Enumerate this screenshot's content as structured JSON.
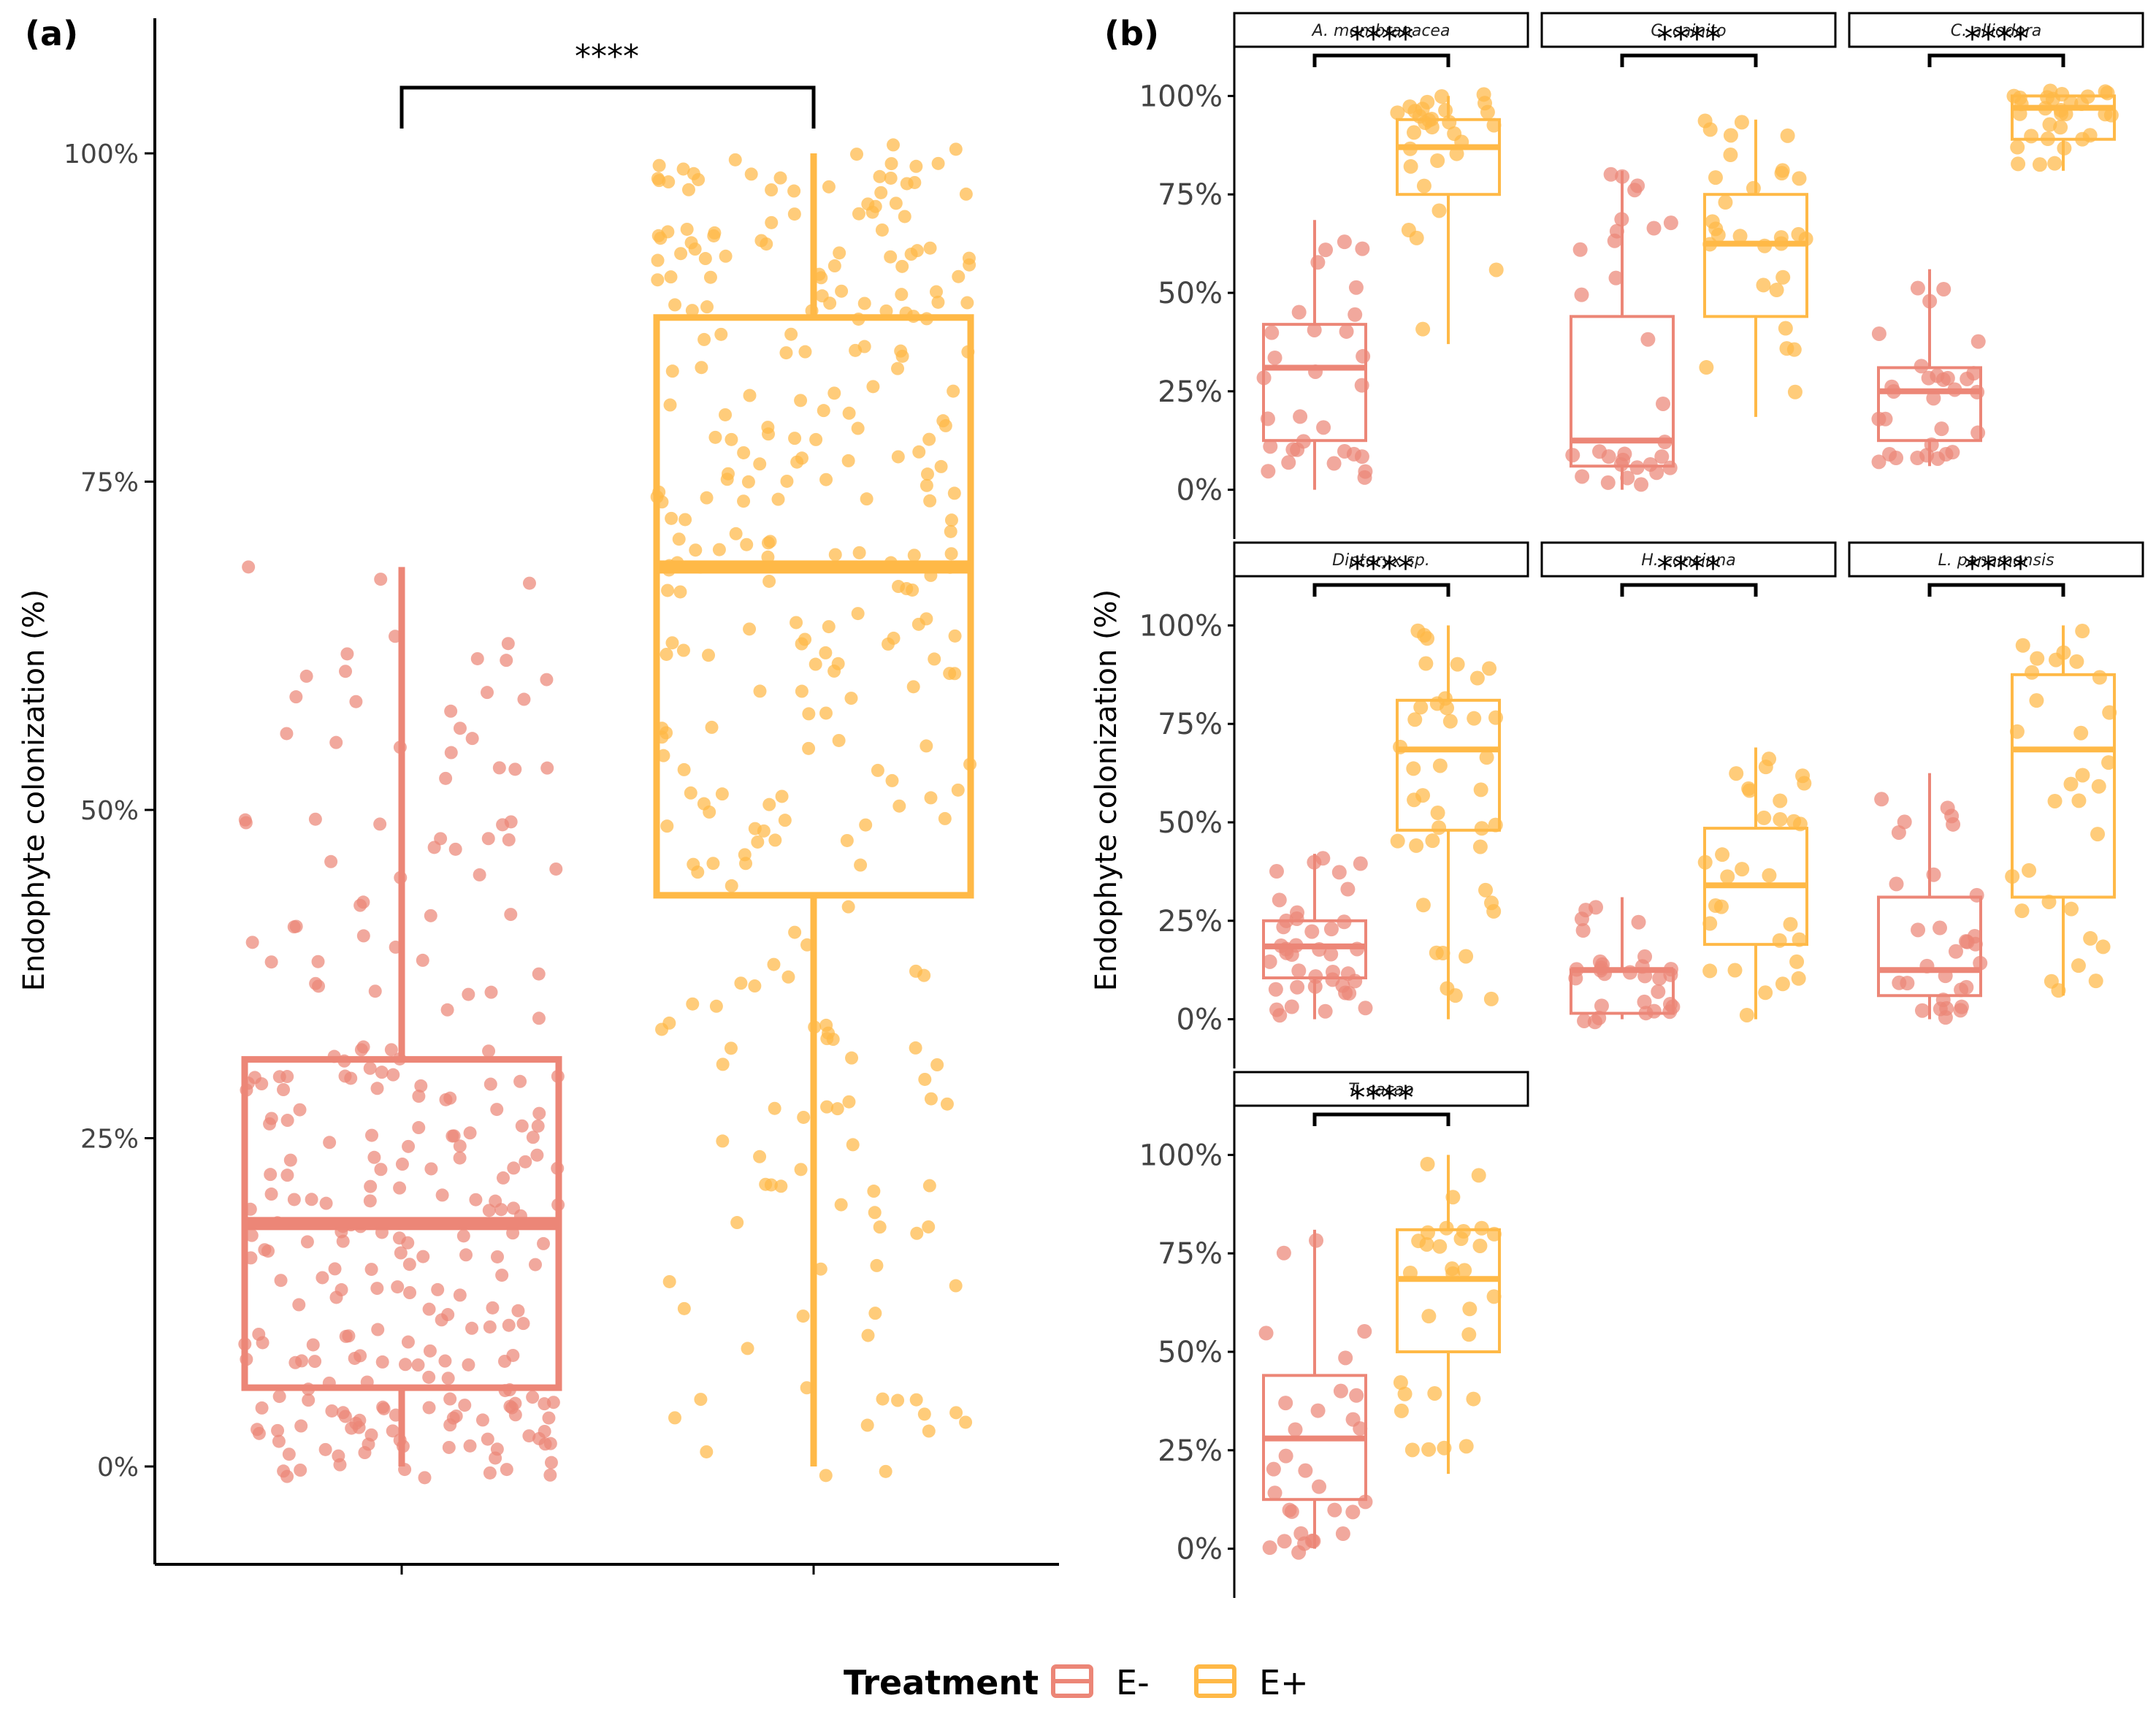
{
  "panel_labels": {
    "a": "(a)",
    "b": "(b)"
  },
  "colors": {
    "E-": "#ec8677",
    "E+": "#ffb947",
    "axis": "#000000",
    "tick_text": "#444444"
  },
  "legend": {
    "title": "Treatment",
    "items": [
      {
        "label": "E-",
        "color": "#ec8677"
      },
      {
        "label": "E+",
        "color": "#ffb947"
      }
    ]
  },
  "chart_data": [
    {
      "id": "a",
      "type": "box",
      "ylabel": "Endophyte colonization (%)",
      "yticks": [
        "0%",
        "25%",
        "50%",
        "75%",
        "100%"
      ],
      "ylim": [
        -7.5,
        112.5
      ],
      "groups": [
        "E-",
        "E+"
      ],
      "boxes": [
        {
          "group": "E-",
          "min": 0,
          "q1": 6,
          "median": 18.5,
          "q3": 31,
          "max": 68.5,
          "n_points": 270
        },
        {
          "group": "E+",
          "min": 0,
          "q1": 43.5,
          "median": 68.5,
          "q3": 87.5,
          "max": 100,
          "n_points": 300
        }
      ],
      "significance": "****",
      "points": {
        "E-": [],
        "E+": []
      }
    },
    {
      "id": "b",
      "type": "box",
      "ylabel": "Endophyte colonization (%)",
      "yticks": [
        "0%",
        "25%",
        "50%",
        "75%",
        "100%"
      ],
      "ylim": [
        -12.5,
        112.5
      ],
      "facets": [
        {
          "title": "A. membranacea",
          "significance": "****",
          "boxes": [
            {
              "group": "E-",
              "min": 0,
              "q1": 12.5,
              "median": 31,
              "q3": 42,
              "max": 68.5,
              "n_points": 30
            },
            {
              "group": "E+",
              "min": 37,
              "q1": 75,
              "median": 87,
              "q3": 94,
              "max": 100,
              "n_points": 30
            }
          ]
        },
        {
          "title": "C. cainito",
          "significance": "****",
          "boxes": [
            {
              "group": "E-",
              "min": 0,
              "q1": 6,
              "median": 12.5,
              "q3": 44,
              "max": 81,
              "n_points": 30
            },
            {
              "group": "E+",
              "min": 18.5,
              "q1": 44,
              "median": 62.5,
              "q3": 75,
              "max": 94,
              "n_points": 30
            }
          ]
        },
        {
          "title": "C. alliodora",
          "significance": "****",
          "boxes": [
            {
              "group": "E-",
              "min": 6,
              "q1": 12.5,
              "median": 25,
              "q3": 31,
              "max": 56,
              "n_points": 30
            },
            {
              "group": "E+",
              "min": 81,
              "q1": 89,
              "median": 97,
              "q3": 100,
              "max": 100,
              "n_points": 30
            }
          ]
        },
        {
          "title": "Dipteryx sp.",
          "significance": "****",
          "boxes": [
            {
              "group": "E-",
              "min": 0,
              "q1": 10.5,
              "median": 18.5,
              "q3": 25,
              "max": 42,
              "n_points": 40
            },
            {
              "group": "E+",
              "min": 0,
              "q1": 48,
              "median": 68.5,
              "q3": 81,
              "max": 100,
              "n_points": 40
            }
          ]
        },
        {
          "title": "H. concinna",
          "significance": "****",
          "boxes": [
            {
              "group": "E-",
              "min": 0,
              "q1": 1.5,
              "median": 12.5,
              "q3": 12.5,
              "max": 31,
              "n_points": 30
            },
            {
              "group": "E+",
              "min": 0,
              "q1": 19,
              "median": 34,
              "q3": 48.5,
              "max": 69,
              "n_points": 30
            }
          ]
        },
        {
          "title": "L. panamensis",
          "significance": "****",
          "boxes": [
            {
              "group": "E-",
              "min": 0,
              "q1": 6,
              "median": 12.5,
              "q3": 31,
              "max": 62.5,
              "n_points": 30
            },
            {
              "group": "E+",
              "min": 6,
              "q1": 31,
              "median": 68.5,
              "q3": 87.5,
              "max": 100,
              "n_points": 30
            }
          ]
        },
        {
          "title": "T. cacao",
          "significance": "****",
          "boxes": [
            {
              "group": "E-",
              "min": 0,
              "q1": 12.5,
              "median": 28,
              "q3": 44,
              "max": 81,
              "n_points": 30
            },
            {
              "group": "E+",
              "min": 19,
              "q1": 50,
              "median": 68.5,
              "q3": 81,
              "max": 100,
              "n_points": 30
            }
          ]
        }
      ]
    }
  ]
}
